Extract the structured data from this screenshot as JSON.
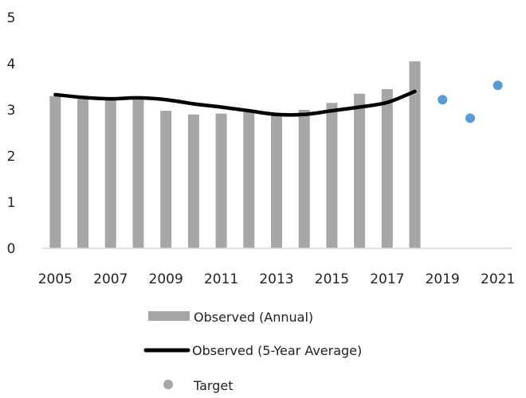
{
  "chart_data": {
    "type": "bar",
    "x": [
      2005,
      2006,
      2007,
      2008,
      2009,
      2010,
      2011,
      2012,
      2013,
      2014,
      2015,
      2016,
      2017,
      2018,
      2019,
      2020,
      2021
    ],
    "x_tick_labels": [
      "2005",
      "2007",
      "2009",
      "2011",
      "2013",
      "2015",
      "2017",
      "2019",
      "2021"
    ],
    "ylim": [
      0,
      5
    ],
    "y_ticks": [
      "0",
      "1",
      "2",
      "3",
      "4",
      "5"
    ],
    "grid": false,
    "legend_position": "bottom",
    "series": [
      {
        "name": "Observed (Annual)",
        "type": "bar",
        "color": "#a6a6a6",
        "x": [
          2005,
          2006,
          2007,
          2008,
          2009,
          2010,
          2011,
          2012,
          2013,
          2014,
          2015,
          2016,
          2017,
          2018
        ],
        "values": [
          3.3,
          3.25,
          3.22,
          3.28,
          2.98,
          2.9,
          2.92,
          2.95,
          2.9,
          3.0,
          3.15,
          3.35,
          3.45,
          4.05
        ]
      },
      {
        "name": "Observed (5-Year Average)",
        "type": "line",
        "color": "#000000",
        "x": [
          2005,
          2006,
          2007,
          2008,
          2009,
          2010,
          2011,
          2012,
          2013,
          2014,
          2015,
          2016,
          2017,
          2018
        ],
        "values": [
          3.33,
          3.27,
          3.24,
          3.26,
          3.22,
          3.13,
          3.06,
          2.98,
          2.9,
          2.9,
          2.98,
          3.06,
          3.16,
          3.4
        ]
      },
      {
        "name": "Target",
        "type": "scatter",
        "color": "#5b9bd5",
        "legend_marker_color": "#a6a6a6",
        "x": [
          2019,
          2020,
          2021
        ],
        "values": [
          3.22,
          2.82,
          3.53
        ]
      }
    ]
  }
}
